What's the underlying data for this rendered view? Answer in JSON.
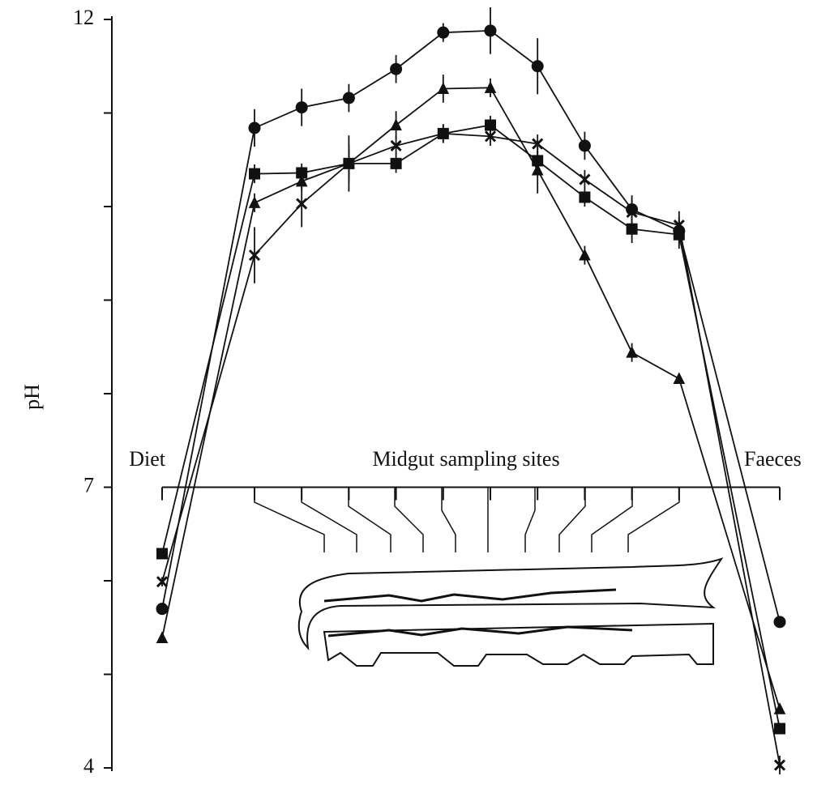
{
  "chart_data": {
    "type": "line",
    "y_label": "pH",
    "annotation": "Midgut sampling sites",
    "categories": [
      "Diet",
      null,
      null,
      null,
      null,
      null,
      null,
      null,
      null,
      null,
      null,
      "Faeces"
    ],
    "ylim": [
      4,
      12
    ],
    "yticks": [
      4,
      7,
      12
    ],
    "minor_yticks": [
      5,
      6,
      8,
      9,
      10,
      11
    ],
    "series": [
      {
        "color": "#111111",
        "marker": "circle",
        "values": [
          5.7,
          10.84,
          11.06,
          11.16,
          11.47,
          11.86,
          11.88,
          11.5,
          10.65,
          9.97,
          9.74,
          5.56
        ],
        "errors": [
          0.05,
          0.2,
          0.2,
          0.15,
          0.15,
          0.1,
          0.25,
          0.3,
          0.15,
          0.15,
          0.15,
          0.05
        ]
      },
      {
        "color": "#111111",
        "marker": "triangle",
        "values": [
          5.39,
          10.04,
          10.27,
          10.46,
          10.87,
          11.26,
          11.27,
          10.39,
          9.48,
          8.44,
          8.16,
          4.63
        ],
        "errors": [
          0.05,
          0.1,
          0.1,
          0.2,
          0.15,
          0.15,
          0.1,
          0.25,
          0.1,
          0.1,
          0.05,
          0.05
        ]
      },
      {
        "color": "#111111",
        "marker": "square",
        "values": [
          6.29,
          10.35,
          10.36,
          10.46,
          10.46,
          10.78,
          10.87,
          10.49,
          10.1,
          9.76,
          9.7,
          4.42
        ],
        "errors": [
          0.05,
          0.1,
          0.1,
          0.15,
          0.1,
          0.1,
          0.1,
          0.1,
          0.1,
          0.15,
          0.15,
          0.05
        ]
      },
      {
        "color": "#111111",
        "marker": "x",
        "values": [
          5.99,
          9.48,
          10.03,
          10.46,
          10.65,
          10.78,
          10.75,
          10.67,
          10.29,
          9.94,
          9.8,
          4.03
        ],
        "errors": [
          0.05,
          0.3,
          0.25,
          0.3,
          0.1,
          0.1,
          0.1,
          0.1,
          0.1,
          0.15,
          0.15,
          0.1
        ]
      }
    ]
  }
}
